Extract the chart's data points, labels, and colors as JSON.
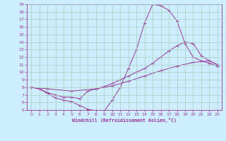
{
  "xlabel": "Windchill (Refroidissement éolien,°C)",
  "bg_color": "#cceeff",
  "line_color": "#993399",
  "grid_color": "#aaddcc",
  "xlim": [
    -0.5,
    23.5
  ],
  "ylim": [
    5,
    19
  ],
  "xticks": [
    0,
    1,
    2,
    3,
    4,
    5,
    6,
    7,
    8,
    9,
    10,
    11,
    12,
    13,
    14,
    15,
    16,
    17,
    18,
    19,
    20,
    21,
    22,
    23
  ],
  "yticks": [
    5,
    6,
    7,
    8,
    9,
    10,
    11,
    12,
    13,
    14,
    15,
    16,
    17,
    18,
    19
  ],
  "lines": [
    {
      "x": [
        0,
        1,
        2,
        3,
        4,
        5,
        6,
        7,
        8,
        9,
        10,
        11,
        12,
        13,
        14,
        15,
        16,
        17,
        18,
        19,
        20,
        21,
        22,
        23
      ],
      "y": [
        8,
        7.8,
        7.2,
        6.6,
        6.3,
        6.1,
        5.6,
        5.1,
        4.9,
        4.8,
        6.3,
        8.0,
        10.5,
        13.0,
        16.5,
        19.0,
        18.8,
        18.2,
        16.8,
        13.8,
        12.0,
        11.5,
        11.2,
        10.8
      ]
    },
    {
      "x": [
        0,
        1,
        2,
        3,
        4,
        5,
        6,
        7,
        8,
        9,
        10,
        11,
        12,
        13,
        14,
        15,
        16,
        17,
        18,
        19,
        20,
        21,
        22,
        23
      ],
      "y": [
        8,
        7.8,
        7.3,
        7.0,
        6.7,
        6.7,
        6.5,
        7.5,
        7.8,
        8.1,
        8.5,
        9.0,
        9.5,
        10.0,
        10.5,
        11.2,
        12.0,
        12.8,
        13.5,
        14.0,
        13.8,
        12.2,
        11.5,
        11.0
      ]
    },
    {
      "x": [
        0,
        2,
        5,
        8,
        10,
        12,
        14,
        16,
        18,
        20,
        22,
        23
      ],
      "y": [
        8,
        7.8,
        7.5,
        7.8,
        8.2,
        8.8,
        9.5,
        10.2,
        10.8,
        11.3,
        11.5,
        11.0
      ]
    }
  ]
}
